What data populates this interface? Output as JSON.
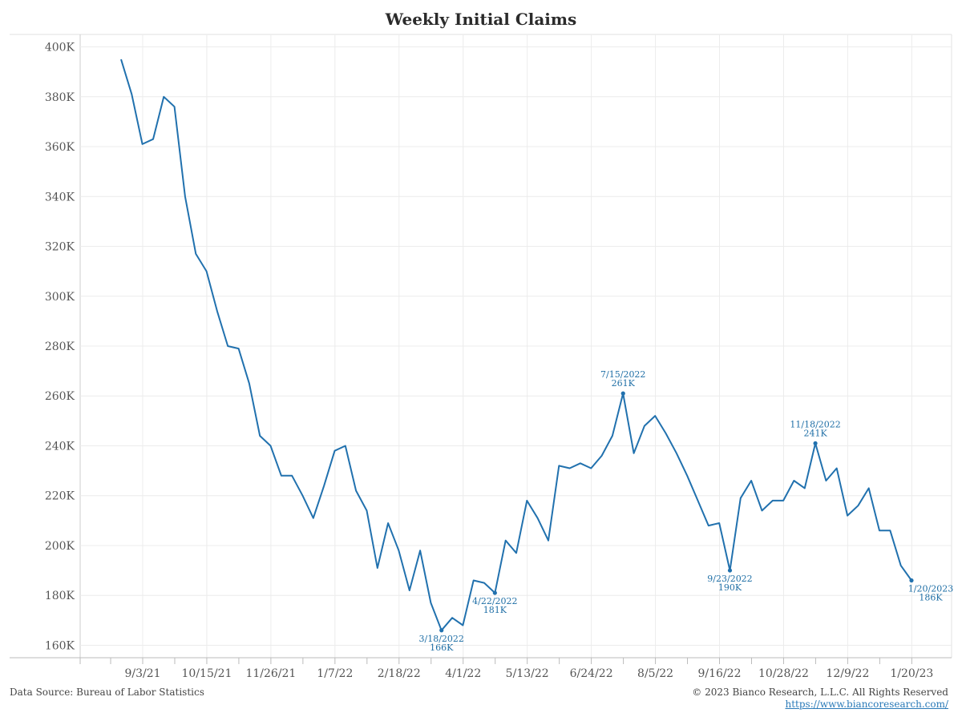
{
  "chart_data": {
    "type": "line",
    "title": "Weekly Initial Claims",
    "xlabel": "",
    "ylabel": "",
    "ylim": [
      155000,
      405000
    ],
    "y_ticks": [
      160000,
      180000,
      200000,
      220000,
      240000,
      260000,
      280000,
      300000,
      320000,
      340000,
      360000,
      380000,
      400000
    ],
    "y_tick_labels": [
      "160K",
      "180K",
      "200K",
      "220K",
      "240K",
      "260K",
      "280K",
      "300K",
      "320K",
      "340K",
      "360K",
      "380K",
      "400K"
    ],
    "x_tick_labels": [
      "9/3/21",
      "10/15/21",
      "11/26/21",
      "1/7/22",
      "2/18/22",
      "4/1/22",
      "5/13/22",
      "6/24/22",
      "8/5/22",
      "9/16/22",
      "10/28/22",
      "12/9/22",
      "1/20/23"
    ],
    "grid": true,
    "series": [
      {
        "color": "#2171ae",
        "values": [
          395000,
          381000,
          361000,
          363000,
          380000,
          376000,
          340000,
          317000,
          310000,
          294000,
          280000,
          279000,
          265000,
          244000,
          240000,
          228000,
          228000,
          220000,
          211000,
          224000,
          238000,
          240000,
          222000,
          214000,
          191000,
          209000,
          198000,
          182000,
          198000,
          177000,
          166000,
          171000,
          168000,
          186000,
          185000,
          181000,
          202000,
          197000,
          218000,
          211000,
          202000,
          232000,
          231000,
          233000,
          231000,
          236000,
          244000,
          261000,
          237000,
          248000,
          252000,
          245000,
          237000,
          228000,
          218000,
          208000,
          209000,
          190000,
          219000,
          226000,
          214000,
          218000,
          218000,
          226000,
          223000,
          241000,
          226000,
          231000,
          212000,
          216000,
          223000,
          206000,
          206000,
          192000,
          186000
        ]
      }
    ],
    "annotations": [
      {
        "index": 30,
        "date": "3/18/2022",
        "value": "166K",
        "position": "below"
      },
      {
        "index": 35,
        "date": "4/22/2022",
        "value": "181K",
        "position": "below"
      },
      {
        "index": 47,
        "date": "7/15/2022",
        "value": "261K",
        "position": "above"
      },
      {
        "index": 57,
        "date": "9/23/2022",
        "value": "190K",
        "position": "below"
      },
      {
        "index": 65,
        "date": "11/18/2022",
        "value": "241K",
        "position": "above"
      },
      {
        "index": 74,
        "date": "1/20/2023",
        "value": "186K",
        "position": "below"
      }
    ]
  },
  "footer": {
    "source": "Data Source: Bureau of Labor Statistics",
    "copyright": "© 2023 Bianco Research, L.L.C. All Rights Reserved",
    "website": "https://www.biancoresearch.com/"
  }
}
